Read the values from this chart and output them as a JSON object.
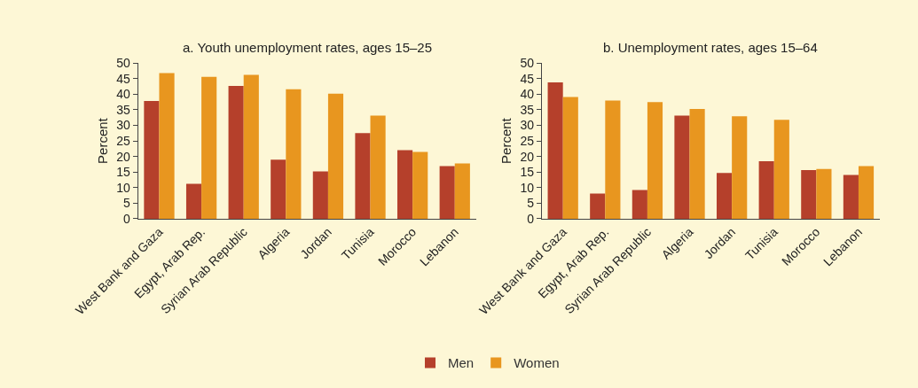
{
  "chart_data": [
    {
      "type": "bar",
      "title": "a. Youth unemployment rates, ages 15–25",
      "ylabel": "Percent",
      "categories": [
        "West Bank and Gaza",
        "Egypt, Arab Rep.",
        "Syrian Arab Republic",
        "Algeria",
        "Jordan",
        "Tunisia",
        "Morocco",
        "Lebanon"
      ],
      "ylim": [
        0,
        50
      ],
      "yticks": [
        0,
        5,
        10,
        15,
        20,
        25,
        30,
        35,
        40,
        45,
        50
      ],
      "legend": "bottom",
      "grid": false,
      "series": [
        {
          "name": "Men",
          "color": "#b5402b",
          "values": [
            37.8,
            11.2,
            42.7,
            19.0,
            15.2,
            27.5,
            22.0,
            16.9
          ]
        },
        {
          "name": "Women",
          "color": "#e8961f",
          "values": [
            46.8,
            45.6,
            46.2,
            41.6,
            40.2,
            33.1,
            21.5,
            17.8
          ]
        }
      ]
    },
    {
      "type": "bar",
      "title": "b. Unemployment rates, ages 15–64",
      "ylabel": "Percent",
      "categories": [
        "West Bank and Gaza",
        "Egypt, Arab Rep.",
        "Syrian Arab Republic",
        "Algeria",
        "Jordan",
        "Tunisia",
        "Morocco",
        "Lebanon"
      ],
      "ylim": [
        0,
        50
      ],
      "yticks": [
        0,
        5,
        10,
        15,
        20,
        25,
        30,
        35,
        40,
        45,
        50
      ],
      "legend": "bottom",
      "grid": false,
      "series": [
        {
          "name": "Men",
          "color": "#b5402b",
          "values": [
            43.8,
            8.1,
            9.2,
            33.1,
            14.7,
            18.5,
            15.6,
            14.1
          ]
        },
        {
          "name": "Women",
          "color": "#e8961f",
          "values": [
            39.1,
            38.0,
            37.5,
            35.3,
            32.9,
            31.8,
            16.0,
            16.9
          ]
        }
      ]
    }
  ]
}
